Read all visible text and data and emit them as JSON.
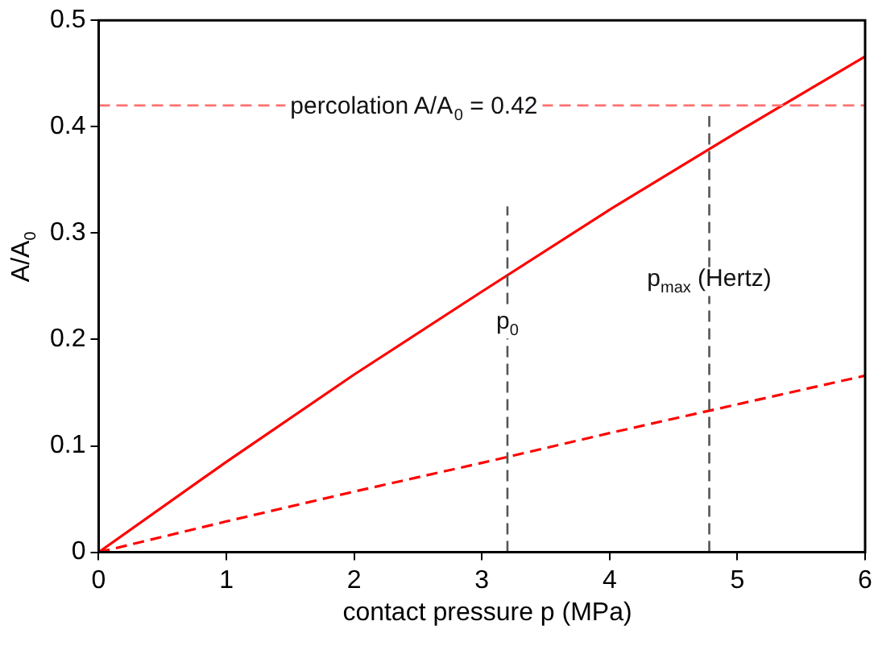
{
  "chart_data": {
    "type": "line",
    "xlabel": "contact pressure p  (MPa)",
    "ylabel": "A/A$_{0}$",
    "x": [
      0,
      1,
      2,
      3,
      4,
      5,
      6
    ],
    "series": [
      {
        "color": "#ff0000",
        "line_style": "solid",
        "values": [
          0,
          0.085,
          0.167,
          0.245,
          0.322,
          0.395,
          0.466
        ]
      },
      {
        "color": "#ff0000",
        "line_style": "dashed",
        "values": [
          0,
          0.029,
          0.057,
          0.084,
          0.112,
          0.139,
          0.166
        ]
      }
    ],
    "xlim": [
      0,
      6
    ],
    "xticks": [
      0,
      1,
      2,
      3,
      4,
      5,
      6
    ],
    "ylim": [
      0,
      0.5
    ],
    "yticks": [
      0,
      0.1,
      0.2,
      0.3,
      0.4,
      0.5
    ],
    "marker": "none",
    "legend": false,
    "ref_lines": [
      {
        "axis": "y",
        "value": 0.42,
        "label": "percolation A/A$_{0}$ = 0.42",
        "color": "#ff7070",
        "line_style": "dashed"
      },
      {
        "axis": "x",
        "value": 3.2,
        "label": "p$_{0}$",
        "color": "#555555",
        "line_style": "dashed"
      },
      {
        "axis": "x",
        "value": 4.78,
        "label": "p$_{max}$ (Hertz)",
        "color": "#555555",
        "line_style": "dashed"
      }
    ]
  }
}
